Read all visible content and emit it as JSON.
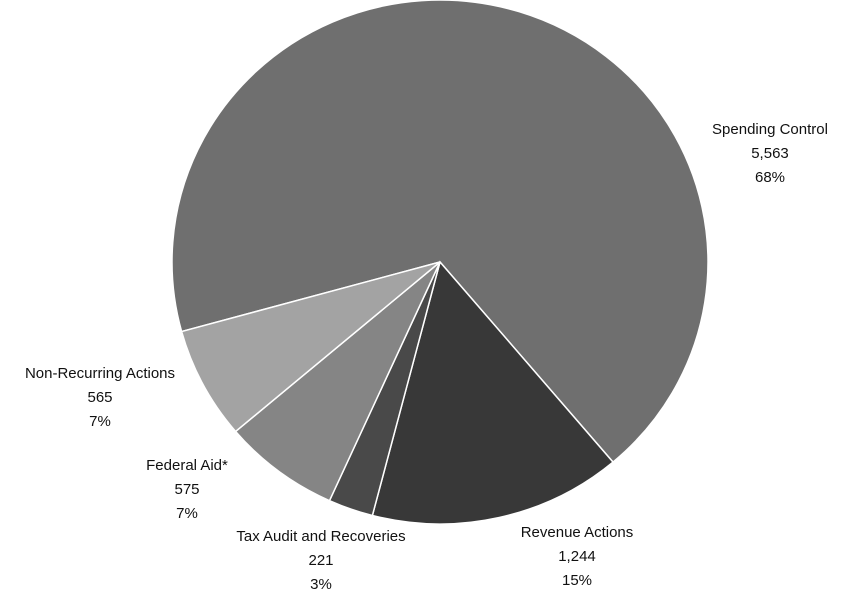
{
  "chart_data": {
    "type": "pie",
    "categories": [
      "Spending Control",
      "Revenue Actions",
      "Tax Audit and Recoveries",
      "Federal Aid*",
      "Non-Recurring Actions"
    ],
    "values": [
      5563,
      1244,
      221,
      575,
      565
    ],
    "value_labels": [
      "5,563",
      "1,244",
      "221",
      "575",
      "565"
    ],
    "percent_labels": [
      "68%",
      "15%",
      "3%",
      "7%",
      "7%"
    ],
    "colors": [
      "#6f6f6f",
      "#383838",
      "#494949",
      "#858585",
      "#a3a3a3"
    ]
  }
}
